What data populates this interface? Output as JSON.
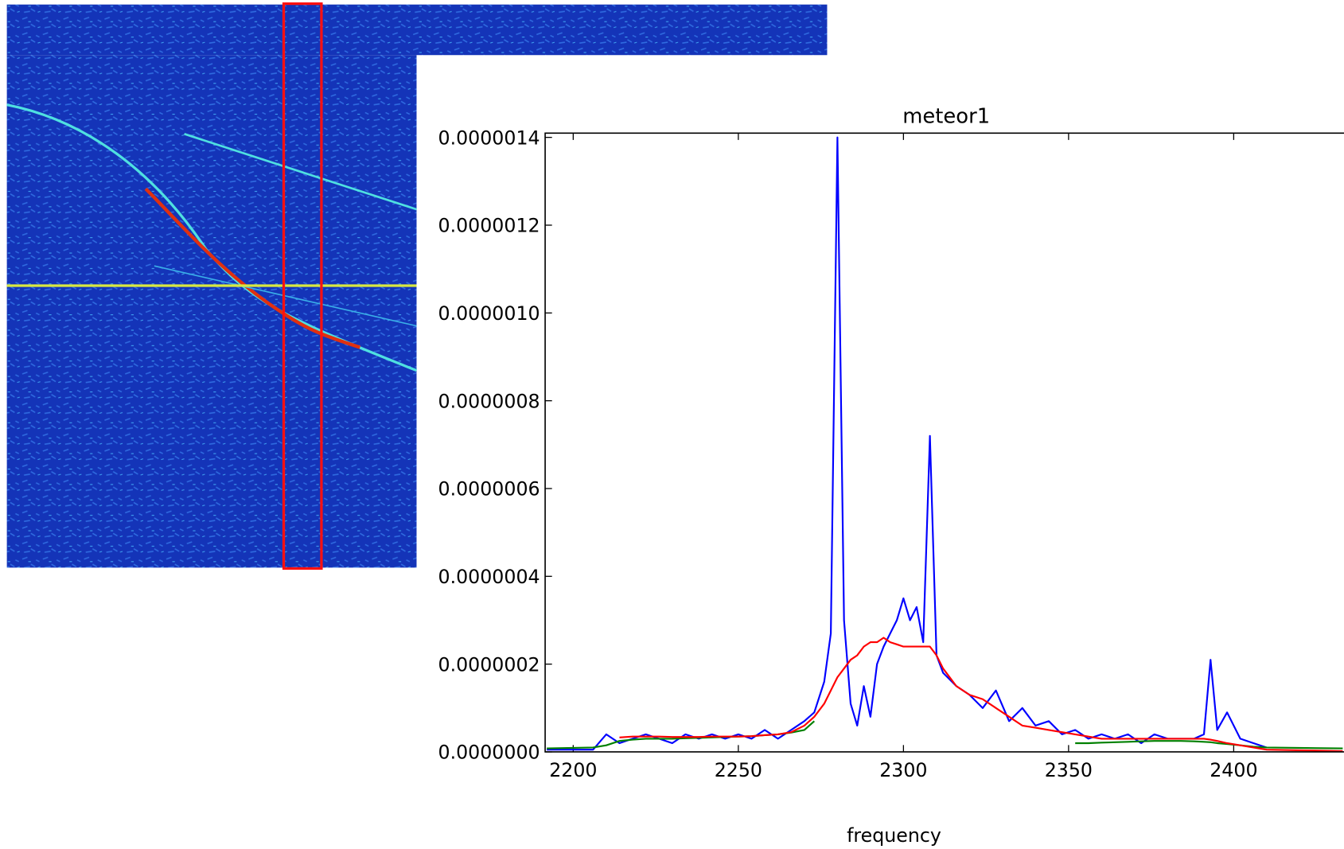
{
  "chart_data": {
    "type": "line",
    "title": "meteor1",
    "xlabel": "frequency",
    "x": [
      2192,
      2206,
      2210,
      2214,
      2218,
      2222,
      2226,
      2230,
      2234,
      2238,
      2242,
      2246,
      2250,
      2254,
      2258,
      2262,
      2266,
      2270,
      2273,
      2276,
      2278,
      2280,
      2282,
      2284,
      2286,
      2288,
      2290,
      2292,
      2294,
      2296,
      2298,
      2300,
      2302,
      2304,
      2306,
      2308,
      2310,
      2312,
      2316,
      2320,
      2324,
      2328,
      2332,
      2336,
      2340,
      2344,
      2348,
      2352,
      2356,
      2360,
      2364,
      2368,
      2372,
      2376,
      2380,
      2384,
      2388,
      2391,
      2393,
      2395,
      2398,
      2402,
      2406,
      2410,
      2433
    ],
    "series": [
      {
        "color": "#0000ff",
        "values": [
          5e-09,
          5e-09,
          4e-08,
          2e-08,
          3e-08,
          4e-08,
          3e-08,
          2e-08,
          4e-08,
          3e-08,
          4e-08,
          3e-08,
          4e-08,
          3e-08,
          5e-08,
          3e-08,
          5e-08,
          7e-08,
          9e-08,
          1.6e-07,
          2.7e-07,
          1.4e-06,
          3e-07,
          1.1e-07,
          6e-08,
          1.5e-07,
          8e-08,
          2e-07,
          2.4e-07,
          2.7e-07,
          3e-07,
          3.5e-07,
          3e-07,
          3.3e-07,
          2.5e-07,
          7.2e-07,
          2.2e-07,
          1.8e-07,
          1.5e-07,
          1.3e-07,
          1e-07,
          1.4e-07,
          7e-08,
          1e-07,
          6e-08,
          7e-08,
          4e-08,
          5e-08,
          3e-08,
          4e-08,
          3e-08,
          4e-08,
          2e-08,
          4e-08,
          3e-08,
          3e-08,
          3e-08,
          4e-08,
          2.1e-07,
          5e-08,
          9e-08,
          3e-08,
          2e-08,
          1e-08,
          null
        ]
      },
      {
        "color": "#008000",
        "values": [
          8e-09,
          1e-08,
          1.5e-08,
          2.5e-08,
          2.8e-08,
          3e-08,
          3e-08,
          3e-08,
          3.1e-08,
          3.2e-08,
          3.3e-08,
          3.4e-08,
          3.5e-08,
          3.6e-08,
          3.8e-08,
          4e-08,
          4.4e-08,
          5e-08,
          7e-08,
          null,
          null,
          null,
          null,
          null,
          null,
          null,
          null,
          null,
          null,
          null,
          null,
          null,
          null,
          null,
          null,
          null,
          null,
          null,
          null,
          null,
          null,
          null,
          null,
          null,
          null,
          null,
          null,
          2e-08,
          2e-08,
          2.1e-08,
          2.2e-08,
          2.3e-08,
          2.4e-08,
          2.5e-08,
          2.5e-08,
          2.5e-08,
          2.4e-08,
          2.3e-08,
          2.2e-08,
          2e-08,
          1.8e-08,
          1.5e-08,
          1.2e-08,
          1e-08,
          8e-09
        ]
      },
      {
        "color": "#ff0000",
        "values": [
          null,
          null,
          null,
          3.3e-08,
          3.5e-08,
          3.5e-08,
          3.5e-08,
          3.4e-08,
          3.4e-08,
          3.4e-08,
          3.5e-08,
          3.5e-08,
          3.5e-08,
          3.6e-08,
          3.8e-08,
          4e-08,
          4.5e-08,
          6e-08,
          8e-08,
          1.1e-07,
          1.4e-07,
          1.7e-07,
          1.9e-07,
          2.1e-07,
          2.2e-07,
          2.4e-07,
          2.5e-07,
          2.5e-07,
          2.6e-07,
          2.5e-07,
          2.45e-07,
          2.4e-07,
          2.4e-07,
          2.4e-07,
          2.4e-07,
          2.4e-07,
          2.2e-07,
          1.9e-07,
          1.5e-07,
          1.3e-07,
          1.2e-07,
          1e-07,
          8e-08,
          6e-08,
          5.5e-08,
          5e-08,
          4.5e-08,
          4e-08,
          3.5e-08,
          3e-08,
          3e-08,
          3e-08,
          3e-08,
          3e-08,
          3e-08,
          3e-08,
          3e-08,
          3e-08,
          2.8e-08,
          2.5e-08,
          2e-08,
          1.5e-08,
          1e-08,
          5e-09,
          2e-09
        ]
      }
    ],
    "xlim": [
      2191.5,
      2433.4
    ],
    "ylim": [
      0,
      1.4e-06
    ],
    "xticks": [
      2200,
      2250,
      2300,
      2350,
      2400
    ],
    "yticks": [
      {
        "value": 0,
        "label": "0.0000000"
      },
      {
        "value": 2e-07,
        "label": "0.0000002"
      },
      {
        "value": 4e-07,
        "label": "0.0000004"
      },
      {
        "value": 6e-07,
        "label": "0.0000006"
      },
      {
        "value": 8e-07,
        "label": "0.0000008"
      },
      {
        "value": 1e-06,
        "label": "0.0000010"
      },
      {
        "value": 1.2e-06,
        "label": "0.0000012"
      },
      {
        "value": 1.4e-06,
        "label": "0.0000014"
      }
    ]
  }
}
